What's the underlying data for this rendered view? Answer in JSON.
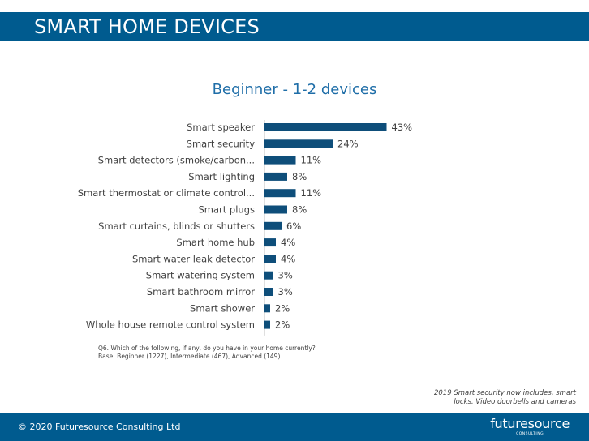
{
  "header": {
    "title": "SMART HOME DEVICES"
  },
  "chart_data": {
    "type": "bar",
    "orientation": "horizontal",
    "title": "Beginner - 1-2 devices",
    "categories": [
      "Smart speaker",
      "Smart security",
      "Smart detectors (smoke/carbon...",
      "Smart lighting",
      "Smart thermostat or climate control...",
      "Smart plugs",
      "Smart curtains, blinds or shutters",
      "Smart home hub",
      "Smart water leak detector",
      "Smart watering system",
      "Smart bathroom mirror",
      "Smart shower",
      "Whole house remote control system"
    ],
    "values": [
      43,
      24,
      11,
      8,
      11,
      8,
      6,
      4,
      4,
      3,
      3,
      2,
      2
    ],
    "value_labels": [
      "43%",
      "24%",
      "11%",
      "8%",
      "11%",
      "8%",
      "6%",
      "4%",
      "4%",
      "3%",
      "3%",
      "2%",
      "2%"
    ],
    "xlim": [
      0,
      50
    ],
    "grid": false,
    "bar_color": "#0e4e7a"
  },
  "notes": {
    "question": "Q6. Which of the following, if any, do you have in your home currently?",
    "base": "Base: Beginner (1227), Intermediate (467), Advanced (149)"
  },
  "footnote": "2019 Smart security now includes, smart locks. Video doorbells and cameras",
  "footer": {
    "copyright": "© 2020 Futuresource Consulting Ltd",
    "logo_word": "futuresource",
    "logo_sub": "CONSULTING"
  },
  "colors": {
    "brand": "#005b8f",
    "title": "#1f6ea8",
    "bar": "#0e4e7a"
  }
}
